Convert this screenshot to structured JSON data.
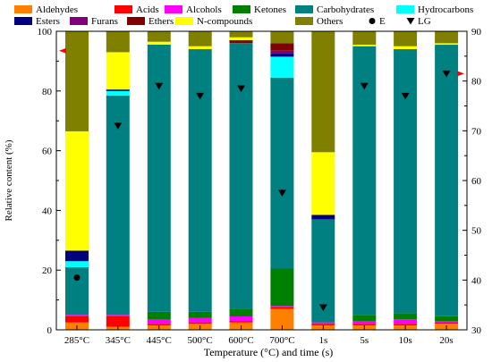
{
  "chart_data": {
    "type": "bar",
    "stacked": true,
    "categories": [
      "285°C",
      "345°C",
      "445°C",
      "500°C",
      "600°C",
      "700°C",
      "1s",
      "5s",
      "10s",
      "20s"
    ],
    "xlabel": "Temperature (°C) and time (s)",
    "ylabel": "Relative content (%)",
    "ylim": [
      0,
      100
    ],
    "y_ticks": [
      0,
      20,
      40,
      60,
      80,
      100
    ],
    "y2lim": [
      30,
      90
    ],
    "y2_ticks": [
      30,
      40,
      50,
      60,
      70,
      80,
      90
    ],
    "legend_position": "top",
    "series": [
      {
        "name": "Aldehydes",
        "color": "#ff8000",
        "values": [
          2.5,
          1,
          1.5,
          2,
          2.5,
          7,
          1.5,
          1.5,
          1.5,
          2
        ]
      },
      {
        "name": "Acids",
        "color": "#ff0000",
        "values": [
          2,
          3.5,
          0.5,
          0.5,
          0.5,
          0.5,
          0.5,
          0.5,
          0.5,
          0.5
        ]
      },
      {
        "name": "Alcohols",
        "color": "#ff00ff",
        "values": [
          0.5,
          0.5,
          1.5,
          1.5,
          1.5,
          0.5,
          0.5,
          1,
          1.5,
          0.5
        ]
      },
      {
        "name": "Ketones",
        "color": "#008000",
        "values": [
          0,
          0,
          2.5,
          2,
          2.5,
          12.5,
          0,
          2,
          2,
          1.5
        ]
      },
      {
        "name": "Carbohydrates",
        "color": "#008080",
        "values": [
          16,
          73.5,
          89.5,
          88,
          89,
          64,
          34.5,
          90,
          88.5,
          91
        ]
      },
      {
        "name": "Hydrocarbons",
        "color": "#00ffff",
        "values": [
          2,
          1.5,
          0,
          0,
          0,
          7,
          0,
          0,
          0,
          0
        ]
      },
      {
        "name": "Esters",
        "color": "#000080",
        "values": [
          3.5,
          0.5,
          0,
          0,
          0,
          1,
          1.5,
          0,
          0,
          0
        ]
      },
      {
        "name": "Furans",
        "color": "#800080",
        "values": [
          0,
          0,
          0,
          0,
          0,
          1,
          0,
          0,
          0,
          0
        ]
      },
      {
        "name": "Ethers",
        "color": "#800000",
        "values": [
          0,
          0,
          0,
          0,
          1,
          2.5,
          0,
          0,
          0,
          0
        ]
      },
      {
        "name": "N-compounds",
        "color": "#ffff00",
        "values": [
          40,
          12.5,
          1,
          1,
          1,
          0,
          21,
          0.5,
          1,
          0.5
        ]
      },
      {
        "name": "Others",
        "color": "#808000",
        "values": [
          33.5,
          7,
          3.5,
          5,
          2,
          4,
          40.5,
          4.5,
          5,
          4
        ]
      }
    ],
    "markers": [
      {
        "name": "E",
        "symbol": "circle",
        "axis": "right",
        "values": [
          40.5,
          null,
          null,
          null,
          null,
          null,
          null,
          null,
          null,
          null
        ]
      },
      {
        "name": "LG",
        "symbol": "triangle",
        "axis": "right",
        "values": [
          null,
          71,
          79,
          77,
          78.5,
          57.5,
          34.5,
          79,
          77,
          81.5
        ]
      }
    ],
    "arrows": [
      {
        "near": "285°C",
        "direction": "left",
        "color": "#ff0000"
      },
      {
        "near": "20s",
        "direction": "right",
        "color": "#ff0000"
      }
    ]
  }
}
